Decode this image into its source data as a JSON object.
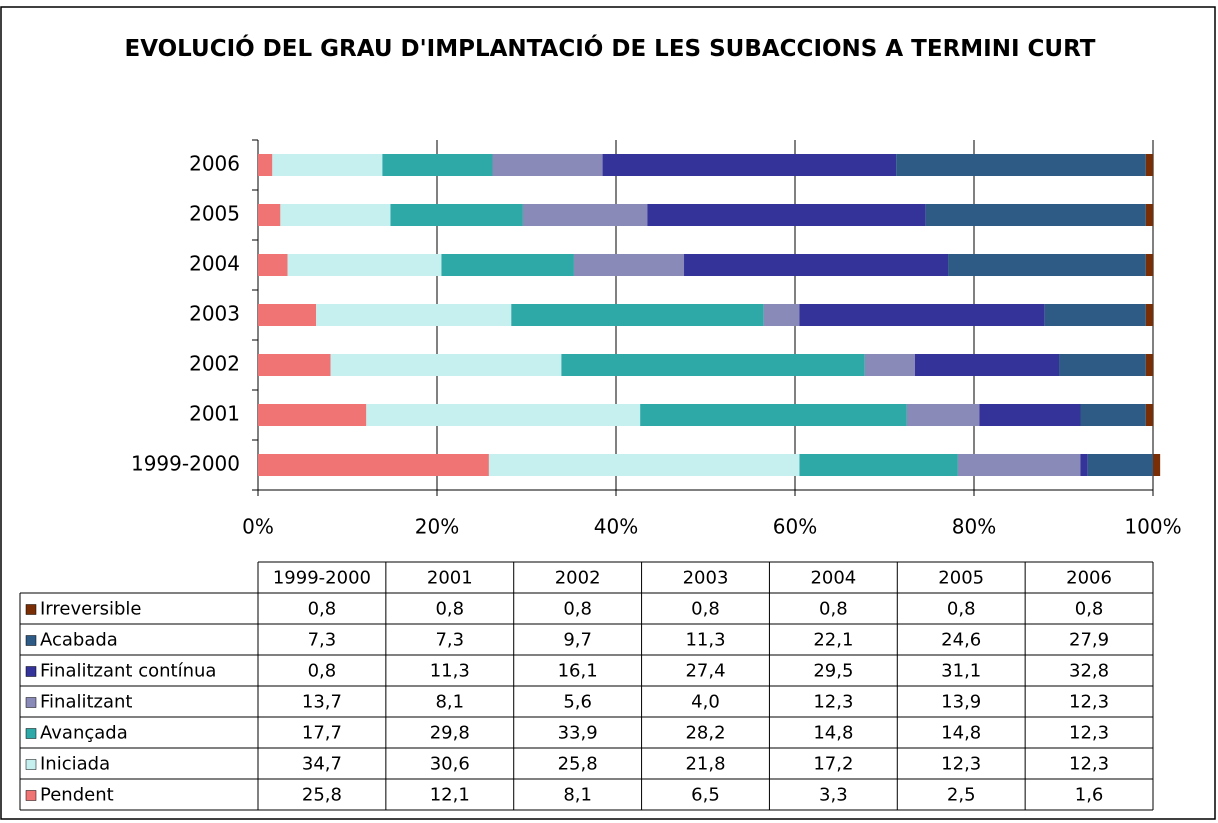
{
  "chart_data": {
    "type": "stacked-bar-horizontal",
    "title": "EVOLUCIÓ DEL GRAU D'IMPLANTACIÓ DE LES SUBACCIONS A TERMINI CURT",
    "categories": [
      "1999-2000",
      "2001",
      "2002",
      "2003",
      "2004",
      "2005",
      "2006"
    ],
    "series": [
      {
        "name": "Irreversible",
        "color": "#7a2e05",
        "values": [
          0.8,
          0.8,
          0.8,
          0.8,
          0.8,
          0.8,
          0.8
        ],
        "value_labels": [
          "0,8",
          "0,8",
          "0,8",
          "0,8",
          "0,8",
          "0,8",
          "0,8"
        ]
      },
      {
        "name": "Acabada",
        "color": "#2e5b86",
        "values": [
          7.3,
          7.3,
          9.7,
          11.3,
          22.1,
          24.6,
          27.9
        ],
        "value_labels": [
          "7,3",
          "7,3",
          "9,7",
          "11,3",
          "22,1",
          "24,6",
          "27,9"
        ]
      },
      {
        "name": "Finalitzant contínua",
        "color": "#33339a",
        "values": [
          0.8,
          11.3,
          16.1,
          27.4,
          29.5,
          31.1,
          32.8
        ],
        "value_labels": [
          "0,8",
          "11,3",
          "16,1",
          "27,4",
          "29,5",
          "31,1",
          "32,8"
        ]
      },
      {
        "name": "Finalitzant",
        "color": "#8a8ab8",
        "values": [
          13.7,
          8.1,
          5.6,
          4.0,
          12.3,
          13.9,
          12.3
        ],
        "value_labels": [
          "13,7",
          "8,1",
          "5,6",
          "4,0",
          "12,3",
          "13,9",
          "12,3"
        ]
      },
      {
        "name": "Avançada",
        "color": "#2fa8a8",
        "values": [
          17.7,
          29.8,
          33.9,
          28.2,
          14.8,
          14.8,
          12.3
        ],
        "value_labels": [
          "17,7",
          "29,8",
          "33,9",
          "28,2",
          "14,8",
          "14,8",
          "12,3"
        ]
      },
      {
        "name": "Iniciada",
        "color": "#c6f0f0",
        "values": [
          34.7,
          30.6,
          25.8,
          21.8,
          17.2,
          12.3,
          12.3
        ],
        "value_labels": [
          "34,7",
          "30,6",
          "25,8",
          "21,8",
          "17,2",
          "12,3",
          "12,3"
        ]
      },
      {
        "name": "Pendent",
        "color": "#f07474",
        "values": [
          25.8,
          12.1,
          8.1,
          6.5,
          3.3,
          2.5,
          1.6
        ],
        "value_labels": [
          "25,8",
          "12,1",
          "8,1",
          "6,5",
          "3,3",
          "2,5",
          "1,6"
        ]
      }
    ],
    "xlim": [
      0,
      100
    ],
    "xticks": [
      {
        "value": 0,
        "label": "0%"
      },
      {
        "value": 20,
        "label": "20%"
      },
      {
        "value": 40,
        "label": "40%"
      },
      {
        "value": 60,
        "label": "60%"
      },
      {
        "value": 80,
        "label": "80%"
      },
      {
        "value": 100,
        "label": "100%"
      }
    ],
    "grid": true
  }
}
